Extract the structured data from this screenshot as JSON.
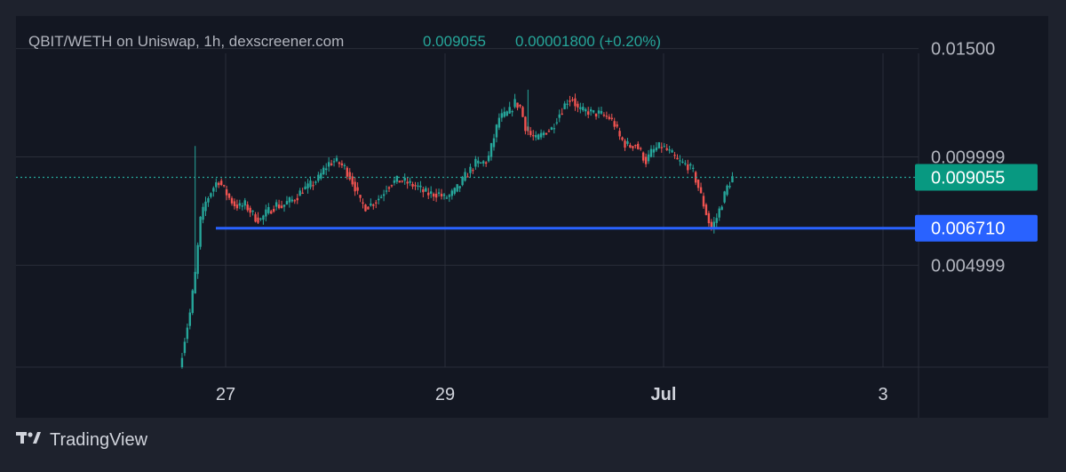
{
  "header": {
    "title": "QBIT/WETH on Uniswap, 1h, dexscreener.com",
    "price": "0.009055",
    "change": "0.00001800 (+0.20%)"
  },
  "branding": {
    "name": "TradingView",
    "icon": "tradingview-logo-icon"
  },
  "colors": {
    "background": "#1e222d",
    "plot_background": "#131722",
    "up": "#26a69a",
    "down": "#ef5350",
    "grid": "#2a2e39",
    "support_line": "#2962ff",
    "price_tag": "#089981",
    "support_tag": "#2962ff"
  },
  "chart_data": {
    "type": "candlestick",
    "title": "",
    "xlabel": "",
    "ylabel": "",
    "ylim": [
      0.0003,
      0.0165
    ],
    "grid": true,
    "x_ticks": [
      "27",
      "29",
      "Jul",
      "3"
    ],
    "y_ticks": [
      {
        "value": 0.015,
        "label": "0.01500"
      },
      {
        "value": 0.009999,
        "label": "0.009999"
      },
      {
        "value": 0.004999,
        "label": "0.004999"
      }
    ],
    "current_price": {
      "value": 0.009055,
      "label": "0.009055"
    },
    "support_line": {
      "value": 0.00671,
      "label": "0.006710"
    },
    "close_path": [
      [
        0,
        0.0003
      ],
      [
        2,
        0.0016
      ],
      [
        4,
        0.0028
      ],
      [
        6,
        0.0046
      ],
      [
        8,
        0.0071
      ],
      [
        10,
        0.0079
      ],
      [
        12,
        0.0084
      ],
      [
        14,
        0.0088
      ],
      [
        15,
        0.0089
      ],
      [
        17,
        0.0085
      ],
      [
        19,
        0.0081
      ],
      [
        21,
        0.0078
      ],
      [
        23,
        0.0077
      ],
      [
        25,
        0.0078
      ],
      [
        27,
        0.0075
      ],
      [
        29,
        0.0072
      ],
      [
        31,
        0.0071
      ],
      [
        33,
        0.0074
      ],
      [
        35,
        0.0076
      ],
      [
        37,
        0.0078
      ],
      [
        39,
        0.0077
      ],
      [
        41,
        0.0079
      ],
      [
        43,
        0.008
      ],
      [
        45,
        0.0082
      ],
      [
        47,
        0.0085
      ],
      [
        49,
        0.0086
      ],
      [
        51,
        0.0088
      ],
      [
        53,
        0.009
      ],
      [
        55,
        0.0094
      ],
      [
        57,
        0.0097
      ],
      [
        59,
        0.0098
      ],
      [
        61,
        0.0097
      ],
      [
        63,
        0.0095
      ],
      [
        65,
        0.0091
      ],
      [
        67,
        0.0086
      ],
      [
        69,
        0.0079
      ],
      [
        71,
        0.0077
      ],
      [
        73,
        0.0078
      ],
      [
        75,
        0.008
      ],
      [
        77,
        0.0082
      ],
      [
        79,
        0.0086
      ],
      [
        81,
        0.0088
      ],
      [
        83,
        0.0089
      ],
      [
        85,
        0.0089
      ],
      [
        87,
        0.0088
      ],
      [
        89,
        0.0087
      ],
      [
        91,
        0.0086
      ],
      [
        93,
        0.0084
      ],
      [
        95,
        0.0083
      ],
      [
        97,
        0.0083
      ],
      [
        99,
        0.0083
      ],
      [
        101,
        0.0081
      ],
      [
        103,
        0.0082
      ],
      [
        105,
        0.0084
      ],
      [
        107,
        0.0087
      ],
      [
        109,
        0.0091
      ],
      [
        111,
        0.0094
      ],
      [
        113,
        0.0097
      ],
      [
        115,
        0.0097
      ],
      [
        117,
        0.0098
      ],
      [
        118,
        0.01
      ],
      [
        120,
        0.0109
      ],
      [
        122,
        0.0118
      ],
      [
        124,
        0.0119
      ],
      [
        126,
        0.0121
      ],
      [
        128,
        0.0125
      ],
      [
        130,
        0.0123
      ],
      [
        132,
        0.0114
      ],
      [
        134,
        0.011
      ],
      [
        136,
        0.0108
      ],
      [
        138,
        0.011
      ],
      [
        140,
        0.0112
      ],
      [
        142,
        0.0113
      ],
      [
        144,
        0.0118
      ],
      [
        146,
        0.0122
      ],
      [
        148,
        0.0126
      ],
      [
        150,
        0.0127
      ],
      [
        152,
        0.0122
      ],
      [
        154,
        0.0121
      ],
      [
        156,
        0.0121
      ],
      [
        158,
        0.012
      ],
      [
        160,
        0.012
      ],
      [
        162,
        0.0119
      ],
      [
        164,
        0.0118
      ],
      [
        166,
        0.0115
      ],
      [
        168,
        0.0109
      ],
      [
        170,
        0.0106
      ],
      [
        172,
        0.0105
      ],
      [
        174,
        0.0106
      ],
      [
        176,
        0.0102
      ],
      [
        178,
        0.0098
      ],
      [
        180,
        0.0102
      ],
      [
        182,
        0.0104
      ],
      [
        184,
        0.0105
      ],
      [
        186,
        0.0103
      ],
      [
        188,
        0.0101
      ],
      [
        190,
        0.0098
      ],
      [
        192,
        0.0097
      ],
      [
        194,
        0.0096
      ],
      [
        196,
        0.0093
      ],
      [
        198,
        0.0086
      ],
      [
        200,
        0.0078
      ],
      [
        202,
        0.007
      ],
      [
        203,
        0.0067
      ],
      [
        205,
        0.0072
      ],
      [
        207,
        0.0079
      ],
      [
        209,
        0.0086
      ],
      [
        211,
        0.00905
      ]
    ]
  }
}
